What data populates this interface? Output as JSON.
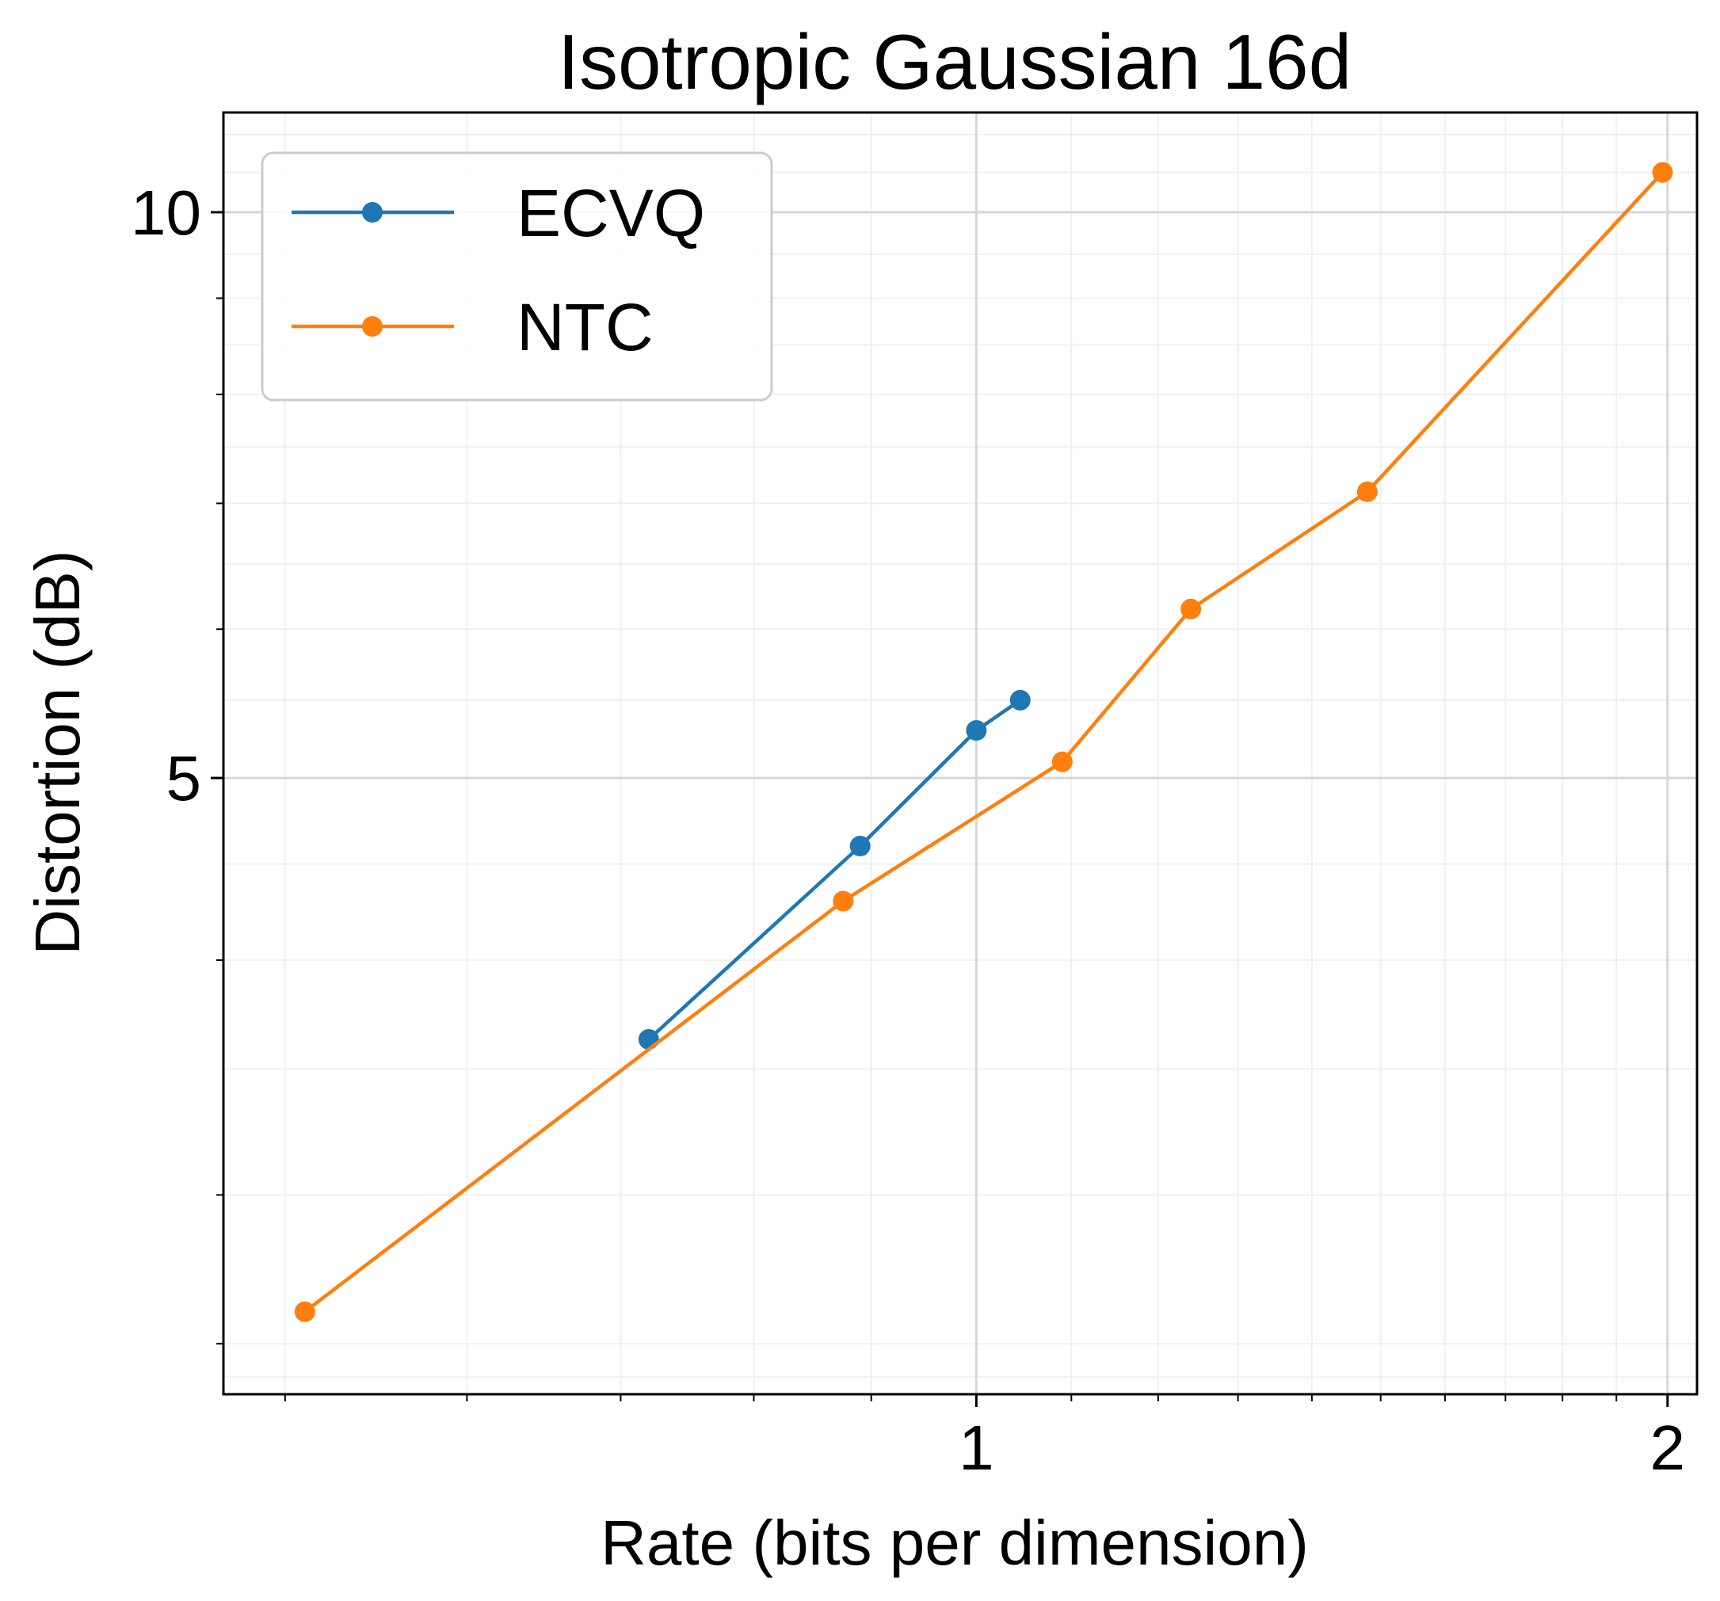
{
  "chart_data": {
    "type": "line",
    "title": "Isotropic Gaussian 16d",
    "xlabel": "Rate (bits per dimension)",
    "ylabel": "Distortion (dB)",
    "x_scale": "log",
    "y_scale": "log",
    "xlim": [
      0.47,
      2.06
    ],
    "ylim": [
      2.35,
      11.3
    ],
    "x_ticks": [
      {
        "value": 1,
        "label": "1"
      },
      {
        "value": 2,
        "label": "2"
      }
    ],
    "y_ticks": [
      {
        "value": 5,
        "label": "5"
      },
      {
        "value": 10,
        "label": "10"
      }
    ],
    "grid": true,
    "legend": "upper-left",
    "series": [
      {
        "name": "ECVQ",
        "color": "#1f77b4",
        "marker": "circle",
        "points": [
          [
            0.72,
            3.63
          ],
          [
            0.89,
            4.6
          ],
          [
            1.0,
            5.3
          ],
          [
            1.045,
            5.5
          ]
        ]
      },
      {
        "name": "NTC",
        "color": "#ff7f0e",
        "marker": "circle",
        "points": [
          [
            0.51,
            2.6
          ],
          [
            0.875,
            4.3
          ],
          [
            1.09,
            5.1
          ],
          [
            1.24,
            6.15
          ],
          [
            1.48,
            7.1
          ],
          [
            1.99,
            10.5
          ]
        ]
      }
    ]
  }
}
